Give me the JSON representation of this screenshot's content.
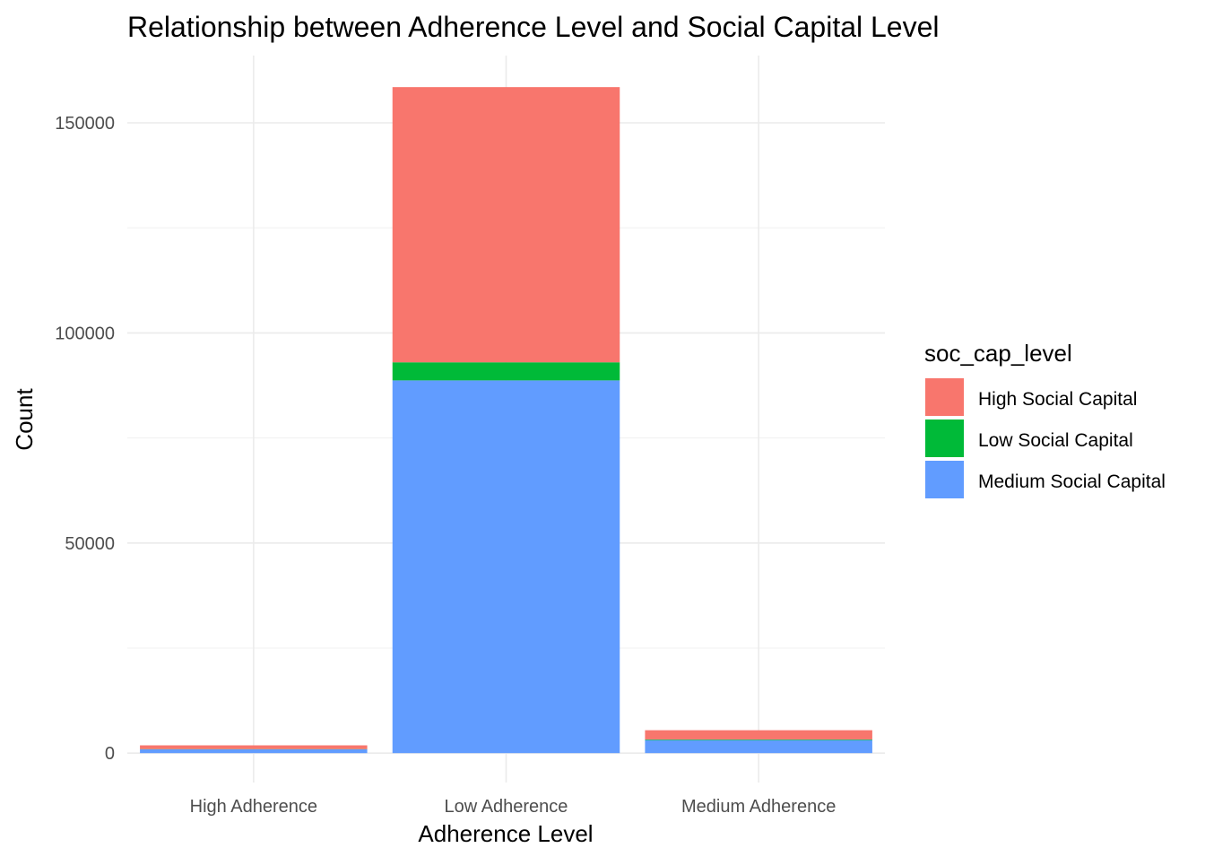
{
  "chart_data": {
    "type": "bar",
    "stacked": true,
    "title": "Relationship between Adherence Level and Social Capital Level",
    "xlabel": "Adherence Level",
    "ylabel": "Count",
    "categories": [
      "High Adherence",
      "Low Adherence",
      "Medium Adherence"
    ],
    "ylim": [
      -7000,
      166000
    ],
    "yticks": [
      0,
      50000,
      100000,
      150000
    ],
    "ytick_labels": [
      "0",
      "50000",
      "100000",
      "150000"
    ],
    "legend_title": "soc_cap_level",
    "legend_position": "right",
    "grid": true,
    "series": [
      {
        "name": "Medium Social Capital",
        "color": "#619CFF",
        "values": [
          900,
          88700,
          3100
        ]
      },
      {
        "name": "Low Social Capital",
        "color": "#00BA38",
        "values": [
          50,
          4300,
          150
        ]
      },
      {
        "name": "High Social Capital",
        "color": "#F8766D",
        "values": [
          900,
          65500,
          2200
        ]
      }
    ],
    "legend_order": [
      "High Social Capital",
      "Low Social Capital",
      "Medium Social Capital"
    ]
  }
}
